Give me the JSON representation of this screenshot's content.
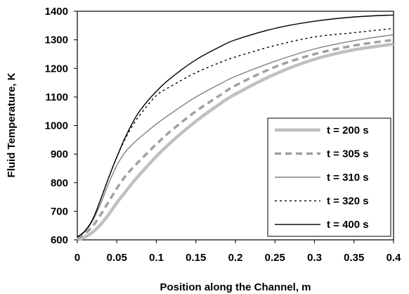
{
  "chart_data": {
    "type": "line",
    "title": "",
    "xlabel": "Position along the Channel, m",
    "ylabel": "Fluid Temperature, K",
    "xlim": [
      0,
      0.4
    ],
    "ylim": [
      600,
      1400
    ],
    "xticks": [
      0,
      0.05,
      0.1,
      0.15,
      0.2,
      0.25,
      0.3,
      0.35,
      0.4
    ],
    "xtick_labels": [
      "0",
      "0.05",
      "0.1",
      "0.15",
      "0.2",
      "0.25",
      "0.3",
      "0.35",
      "0.4"
    ],
    "yticks": [
      600,
      700,
      800,
      900,
      1000,
      1100,
      1200,
      1300,
      1400
    ],
    "ytick_labels": [
      "600",
      "700",
      "800",
      "900",
      "1000",
      "1100",
      "1200",
      "1300",
      "1400"
    ],
    "grid": false,
    "legend_position": "right",
    "series": [
      {
        "name": "t = 200 s",
        "color": "#c0c0c0",
        "style": "thick-solid",
        "x": [
          0,
          0.01,
          0.02,
          0.03,
          0.04,
          0.05,
          0.06,
          0.07,
          0.08,
          0.1,
          0.12,
          0.15,
          0.18,
          0.2,
          0.25,
          0.3,
          0.35,
          0.4
        ],
        "y": [
          600,
          610,
          628,
          655,
          690,
          730,
          765,
          800,
          832,
          892,
          945,
          1015,
          1075,
          1110,
          1180,
          1232,
          1265,
          1285
        ]
      },
      {
        "name": "t = 305 s",
        "color": "#a0a0a0",
        "style": "thick-dashed",
        "x": [
          0,
          0.01,
          0.02,
          0.03,
          0.04,
          0.05,
          0.06,
          0.07,
          0.08,
          0.1,
          0.12,
          0.15,
          0.18,
          0.2,
          0.25,
          0.3,
          0.35,
          0.4
        ],
        "y": [
          605,
          622,
          650,
          690,
          735,
          780,
          820,
          852,
          880,
          935,
          985,
          1050,
          1105,
          1140,
          1205,
          1250,
          1280,
          1300
        ]
      },
      {
        "name": "t = 310 s",
        "color": "#808080",
        "style": "solid",
        "x": [
          0,
          0.01,
          0.02,
          0.03,
          0.04,
          0.05,
          0.06,
          0.07,
          0.08,
          0.1,
          0.12,
          0.15,
          0.18,
          0.2,
          0.25,
          0.3,
          0.35,
          0.4
        ],
        "y": [
          608,
          630,
          670,
          730,
          800,
          860,
          905,
          935,
          960,
          1005,
          1045,
          1100,
          1145,
          1172,
          1225,
          1268,
          1297,
          1318
        ]
      },
      {
        "name": "t = 320 s",
        "color": "#000000",
        "style": "dotted",
        "x": [
          0,
          0.01,
          0.02,
          0.03,
          0.04,
          0.05,
          0.06,
          0.07,
          0.08,
          0.1,
          0.12,
          0.15,
          0.18,
          0.2,
          0.25,
          0.3,
          0.35,
          0.4
        ],
        "y": [
          610,
          632,
          675,
          745,
          820,
          890,
          950,
          1000,
          1040,
          1105,
          1140,
          1185,
          1220,
          1240,
          1280,
          1310,
          1325,
          1340
        ]
      },
      {
        "name": "t = 400 s",
        "color": "#000000",
        "style": "solid",
        "x": [
          0,
          0.01,
          0.02,
          0.03,
          0.04,
          0.05,
          0.06,
          0.07,
          0.08,
          0.1,
          0.12,
          0.15,
          0.18,
          0.2,
          0.25,
          0.3,
          0.35,
          0.4
        ],
        "y": [
          610,
          632,
          675,
          745,
          820,
          890,
          955,
          1010,
          1055,
          1120,
          1170,
          1230,
          1275,
          1300,
          1340,
          1365,
          1380,
          1387
        ]
      }
    ]
  }
}
